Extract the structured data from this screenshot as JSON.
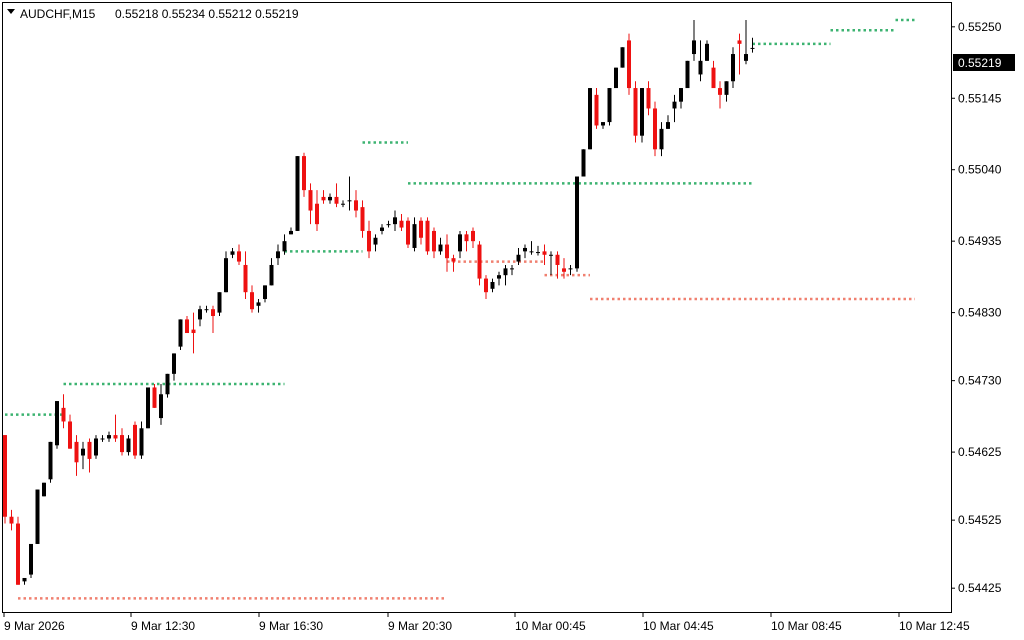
{
  "header": {
    "symbol": "AUDCHF,M15",
    "ohlc": "0.55218 0.55234 0.55212 0.55219"
  },
  "current_price": "0.55219",
  "colors": {
    "bull": "#000000",
    "bear": "#ee1111",
    "resistance": "#3cb371",
    "support": "#f08070",
    "axis": "#000000",
    "price_tag_bg": "#000000"
  },
  "chart_data": {
    "type": "candlestick",
    "y_ticks": [
      "0.55250",
      "0.55145",
      "0.55040",
      "0.54935",
      "0.54830",
      "0.54730",
      "0.54625",
      "0.54525",
      "0.54425"
    ],
    "x_ticks": [
      "9 Mar 2026",
      "9 Mar 12:30",
      "9 Mar 16:30",
      "9 Mar 20:30",
      "10 Mar 00:45",
      "10 Mar 04:45",
      "10 Mar 08:45",
      "10 Mar 12:45"
    ],
    "ylim": [
      0.5439,
      0.55285
    ],
    "candles": [
      [
        0.5465,
        0.5465,
        0.5452,
        0.5453
      ],
      [
        0.5453,
        0.5454,
        0.5451,
        0.5452
      ],
      [
        0.5452,
        0.5453,
        0.5443,
        0.5443
      ],
      [
        0.54435,
        0.5444,
        0.5443,
        0.5444
      ],
      [
        0.54445,
        0.5449,
        0.5444,
        0.5449
      ],
      [
        0.5449,
        0.5457,
        0.5449,
        0.5457
      ],
      [
        0.5456,
        0.5458,
        0.5456,
        0.5458
      ],
      [
        0.54585,
        0.5464,
        0.5458,
        0.5464
      ],
      [
        0.54635,
        0.547,
        0.5463,
        0.547
      ],
      [
        0.5469,
        0.5471,
        0.5466,
        0.5467
      ],
      [
        0.5467,
        0.5468,
        0.5463,
        0.5463
      ],
      [
        0.5464,
        0.5465,
        0.5459,
        0.5461
      ],
      [
        0.5462,
        0.5464,
        0.546,
        0.5463
      ],
      [
        0.5464,
        0.54645,
        0.54595,
        0.54615
      ],
      [
        0.5462,
        0.5465,
        0.54615,
        0.54645
      ],
      [
        0.54645,
        0.5465,
        0.5464,
        0.54645
      ],
      [
        0.54645,
        0.54655,
        0.5464,
        0.5465
      ],
      [
        0.5465,
        0.5468,
        0.5464,
        0.54645
      ],
      [
        0.5465,
        0.5466,
        0.5462,
        0.54625
      ],
      [
        0.54625,
        0.5465,
        0.5462,
        0.54645
      ],
      [
        0.54665,
        0.5467,
        0.54615,
        0.5462
      ],
      [
        0.5462,
        0.5467,
        0.54615,
        0.5466
      ],
      [
        0.5466,
        0.5472,
        0.5466,
        0.5472
      ],
      [
        0.5472,
        0.54725,
        0.5469,
        0.5469
      ],
      [
        0.54675,
        0.54725,
        0.54665,
        0.5471
      ],
      [
        0.5471,
        0.5474,
        0.54705,
        0.5474
      ],
      [
        0.5474,
        0.5477,
        0.5473,
        0.5477
      ],
      [
        0.5478,
        0.5482,
        0.54775,
        0.5482
      ],
      [
        0.5482,
        0.54825,
        0.548,
        0.548
      ],
      [
        0.54805,
        0.5483,
        0.5477,
        0.548
      ],
      [
        0.5482,
        0.5484,
        0.5481,
        0.54835
      ],
      [
        0.54835,
        0.5484,
        0.5483,
        0.54835
      ],
      [
        0.54835,
        0.5484,
        0.548,
        0.54825
      ],
      [
        0.5483,
        0.5486,
        0.54825,
        0.5486
      ],
      [
        0.5486,
        0.5492,
        0.5486,
        0.5491
      ],
      [
        0.54915,
        0.54925,
        0.5491,
        0.5492
      ],
      [
        0.5492,
        0.5493,
        0.549,
        0.54905
      ],
      [
        0.549,
        0.5492,
        0.5485,
        0.5486
      ],
      [
        0.5486,
        0.5487,
        0.5483,
        0.54835
      ],
      [
        0.5484,
        0.5485,
        0.5483,
        0.54845
      ],
      [
        0.5485,
        0.5487,
        0.54845,
        0.5487
      ],
      [
        0.5487,
        0.5491,
        0.5487,
        0.549
      ],
      [
        0.5491,
        0.5493,
        0.549,
        0.5492
      ],
      [
        0.5492,
        0.54945,
        0.54915,
        0.54935
      ],
      [
        0.54945,
        0.54955,
        0.54945,
        0.5495
      ],
      [
        0.5495,
        0.5506,
        0.5495,
        0.5506
      ],
      [
        0.5506,
        0.55065,
        0.55,
        0.5501
      ],
      [
        0.5501,
        0.5502,
        0.5496,
        0.5498
      ],
      [
        0.5499,
        0.5501,
        0.5495,
        0.5496
      ],
      [
        0.55,
        0.5501,
        0.5499,
        0.54995
      ],
      [
        0.54995,
        0.55005,
        0.5499,
        0.55
      ],
      [
        0.55,
        0.5502,
        0.54985,
        0.5499
      ],
      [
        0.5499,
        0.54995,
        0.54985,
        0.5499
      ],
      [
        0.54995,
        0.5503,
        0.5498,
        0.54995
      ],
      [
        0.54995,
        0.5501,
        0.5497,
        0.5498
      ],
      [
        0.54985,
        0.54995,
        0.5494,
        0.5495
      ],
      [
        0.5495,
        0.54965,
        0.5491,
        0.5492
      ],
      [
        0.5493,
        0.54945,
        0.5492,
        0.5494
      ],
      [
        0.5495,
        0.5496,
        0.54945,
        0.54955
      ],
      [
        0.5496,
        0.54965,
        0.54955,
        0.5496
      ],
      [
        0.5496,
        0.5498,
        0.5495,
        0.5497
      ],
      [
        0.54965,
        0.54975,
        0.5495,
        0.54955
      ],
      [
        0.54965,
        0.5497,
        0.54925,
        0.5493
      ],
      [
        0.54925,
        0.5497,
        0.5492,
        0.5496
      ],
      [
        0.54965,
        0.5497,
        0.5493,
        0.5494
      ],
      [
        0.54965,
        0.5497,
        0.54915,
        0.5492
      ],
      [
        0.5495,
        0.54955,
        0.5491,
        0.5492
      ],
      [
        0.5492,
        0.5494,
        0.54915,
        0.5493
      ],
      [
        0.5493,
        0.54945,
        0.5489,
        0.5491
      ],
      [
        0.5491,
        0.54915,
        0.5489,
        0.54905
      ],
      [
        0.5492,
        0.5495,
        0.5491,
        0.54945
      ],
      [
        0.54945,
        0.5495,
        0.5492,
        0.54935
      ],
      [
        0.5495,
        0.54955,
        0.54925,
        0.54935
      ],
      [
        0.5493,
        0.54935,
        0.5487,
        0.5488
      ],
      [
        0.5488,
        0.54885,
        0.5485,
        0.5486
      ],
      [
        0.54865,
        0.5488,
        0.5486,
        0.54875
      ],
      [
        0.5488,
        0.5489,
        0.5487,
        0.54885
      ],
      [
        0.54885,
        0.549,
        0.5487,
        0.54895
      ],
      [
        0.54895,
        0.549,
        0.54885,
        0.54895
      ],
      [
        0.54905,
        0.54925,
        0.549,
        0.54915
      ],
      [
        0.5492,
        0.5493,
        0.5491,
        0.54925
      ],
      [
        0.5492,
        0.54935,
        0.54915,
        0.5492
      ],
      [
        0.54918,
        0.54928,
        0.54914,
        0.54919
      ],
      [
        0.5492,
        0.5493,
        0.549,
        0.54915
      ],
      [
        0.54915,
        0.5492,
        0.54885,
        0.54915
      ],
      [
        0.54915,
        0.5492,
        0.5488,
        0.549
      ],
      [
        0.54895,
        0.5491,
        0.5488,
        0.5489
      ],
      [
        0.54895,
        0.549,
        0.54885,
        0.54895
      ],
      [
        0.54895,
        0.5503,
        0.5489,
        0.5503
      ],
      [
        0.5503,
        0.5507,
        0.5503,
        0.5507
      ],
      [
        0.5507,
        0.5516,
        0.5507,
        0.5516
      ],
      [
        0.5515,
        0.5516,
        0.551,
        0.55105
      ],
      [
        0.55105,
        0.5511,
        0.551,
        0.5511
      ],
      [
        0.5511,
        0.5516,
        0.55105,
        0.5516
      ],
      [
        0.5516,
        0.5519,
        0.5516,
        0.5519
      ],
      [
        0.5519,
        0.5522,
        0.5519,
        0.5522
      ],
      [
        0.5523,
        0.5524,
        0.5515,
        0.5516
      ],
      [
        0.5516,
        0.5517,
        0.5508,
        0.5509
      ],
      [
        0.5509,
        0.5516,
        0.5508,
        0.5516
      ],
      [
        0.5516,
        0.5517,
        0.5512,
        0.5513
      ],
      [
        0.5513,
        0.5514,
        0.5506,
        0.5507
      ],
      [
        0.5507,
        0.5511,
        0.5506,
        0.551
      ],
      [
        0.551,
        0.5512,
        0.551,
        0.5511
      ],
      [
        0.5513,
        0.5515,
        0.5511,
        0.5514
      ],
      [
        0.5514,
        0.5516,
        0.5513,
        0.5516
      ],
      [
        0.5516,
        0.552,
        0.5516,
        0.552
      ],
      [
        0.5521,
        0.5526,
        0.552,
        0.5523
      ],
      [
        0.5518,
        0.5523,
        0.5517,
        0.552
      ],
      [
        0.552,
        0.5523,
        0.552,
        0.55225
      ],
      [
        0.5519,
        0.552,
        0.5516,
        0.5516
      ],
      [
        0.5516,
        0.5517,
        0.5513,
        0.5515
      ],
      [
        0.5515,
        0.5517,
        0.5514,
        0.5517
      ],
      [
        0.5517,
        0.5522,
        0.5516,
        0.5521
      ],
      [
        0.5523,
        0.5524,
        0.5518,
        0.55225
      ],
      [
        0.552,
        0.5526,
        0.55195,
        0.5521
      ],
      [
        0.55218,
        0.55234,
        0.55212,
        0.55219
      ]
    ],
    "resistance_levels": [
      {
        "price": 0.5468,
        "from": 0,
        "to": 9
      },
      {
        "price": 0.54725,
        "from": 9,
        "to": 43
      },
      {
        "price": 0.5492,
        "from": 43,
        "to": 55
      },
      {
        "price": 0.5508,
        "from": 55,
        "to": 62
      },
      {
        "price": 0.5502,
        "from": 62,
        "to": 115
      },
      {
        "price": 0.55225,
        "from": 115,
        "to": 127
      },
      {
        "price": 0.55245,
        "from": 127,
        "to": 137
      },
      {
        "price": 0.5526,
        "from": 137,
        "to": 140
      }
    ],
    "support_levels": [
      {
        "price": 0.5441,
        "from": 2,
        "to": 68
      },
      {
        "price": 0.54905,
        "from": 68,
        "to": 83
      },
      {
        "price": 0.54885,
        "from": 83,
        "to": 90
      },
      {
        "price": 0.5485,
        "from": 90,
        "to": 140
      }
    ]
  }
}
